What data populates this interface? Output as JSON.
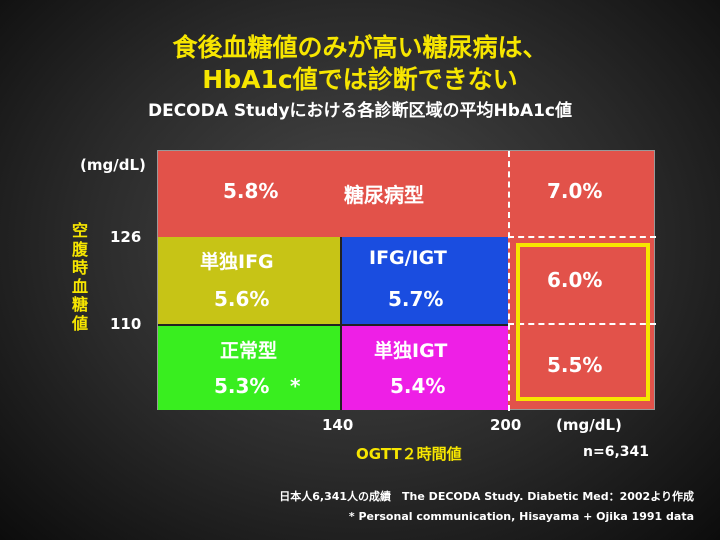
{
  "title_line1": "食後血糖値のみが高い糖尿病は、",
  "title_line2": "HbA1c値では診断できない",
  "subtitle": "DECODA Studyにおける各診断区域の平均HbA1c値",
  "y_unit": "(mg/dL)",
  "y_label": "空腹時血糖値",
  "y_ticks": [
    "126",
    "110"
  ],
  "x_ticks": [
    "140",
    "200"
  ],
  "x_unit": "(mg/dL)",
  "x_label": "OGTT２時間値",
  "n_label": "n=6,341",
  "regions": {
    "diabetes_left": {
      "value": "5.8%",
      "name": "糖尿病型",
      "color": "#e2524a"
    },
    "diabetes_right_top": {
      "value": "7.0%",
      "color": "#e2524a"
    },
    "diabetes_right_mid": {
      "value": "6.0%",
      "color": "#e2524a"
    },
    "diabetes_right_bottom": {
      "value": "5.5%",
      "color": "#e2524a"
    },
    "ifg": {
      "name": "単独IFG",
      "value": "5.6%",
      "color": "#c7c416"
    },
    "ifg_igt": {
      "name": "IFG/IGT",
      "value": "5.7%",
      "color": "#1a4de0"
    },
    "normal": {
      "name": "正常型",
      "value": "5.3%",
      "asterisk": "*",
      "color": "#39ee1f"
    },
    "igt": {
      "name": "単独IGT",
      "value": "5.4%",
      "color": "#ee1fe6"
    }
  },
  "highlight_color": "#f7e600",
  "footnote1": "日本人6,341人の成績　The DECODA Study. Diabetic Med：2002より作成",
  "footnote2": "* Personal communication, Hisayama + Ojika 1991 data"
}
